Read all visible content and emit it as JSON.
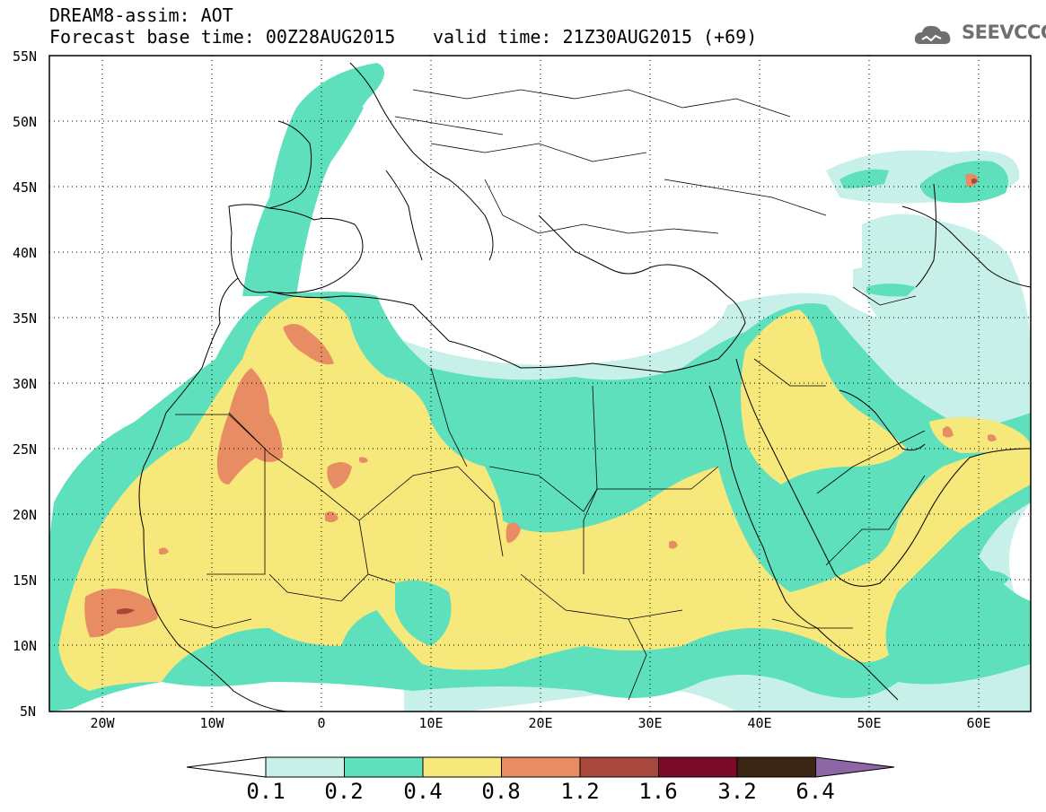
{
  "header": {
    "title_line1": "DREAM8-assim: AOT",
    "title_line2": "Forecast base time: 00Z28AUG2015",
    "valid_time": "valid time: 21Z30AUG2015 (+69)",
    "logo_text": "SEEVCCC"
  },
  "axes": {
    "lat_labels": [
      "55N",
      "50N",
      "45N",
      "40N",
      "35N",
      "30N",
      "25N",
      "20N",
      "15N",
      "10N",
      "5N"
    ],
    "lon_labels": [
      "20W",
      "10W",
      "0",
      "10E",
      "20E",
      "30E",
      "40E",
      "50E",
      "60E"
    ]
  },
  "colorbar": {
    "labels": [
      "0.1",
      "0.2",
      "0.4",
      "0.8",
      "1.2",
      "1.6",
      "3.2",
      "6.4"
    ],
    "colors": [
      "#ffffff",
      "#c6f0e8",
      "#5ee0bc",
      "#f6e87a",
      "#e88c64",
      "#a8483c",
      "#7a0a28",
      "#3a2414",
      "#8e66a6"
    ]
  },
  "colors": {
    "very_low": "#c6f0e8",
    "low": "#5ee0bc",
    "medium": "#f6e87a",
    "high": "#e88c64",
    "very_high": "#a8483c"
  }
}
